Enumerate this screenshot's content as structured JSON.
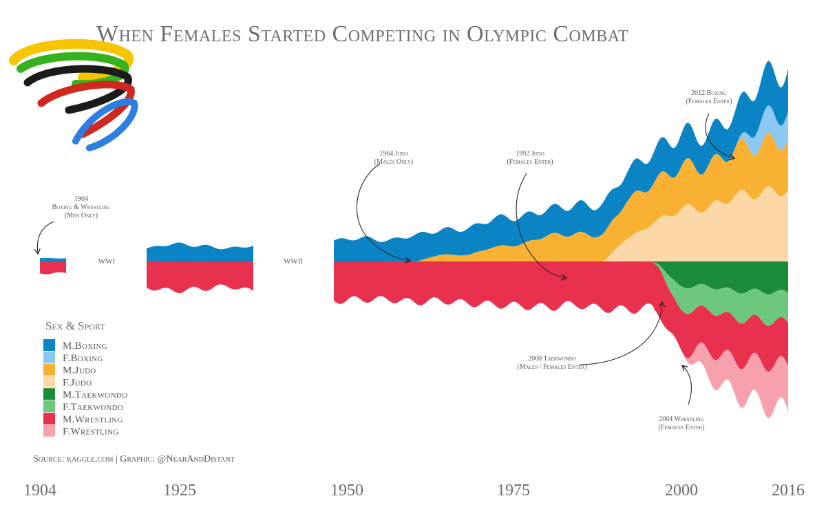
{
  "title": "When Females Started Competing in Olympic Combat",
  "source": "Source: kaggle.com | Graphic: @NearAndDistant",
  "logo_icon": "olympic-rings-swirl",
  "legend": {
    "title": "Sex & Sport",
    "items": [
      {
        "label": "M.Boxing",
        "color": "#0b84c6"
      },
      {
        "label": "F.Boxing",
        "color": "#8cc8f4"
      },
      {
        "label": "M.Judo",
        "color": "#f8b133"
      },
      {
        "label": "F.Judo",
        "color": "#fcd7a7"
      },
      {
        "label": "M.Taekwondo",
        "color": "#1a8c3a"
      },
      {
        "label": "F.Taekwondo",
        "color": "#6ec87c"
      },
      {
        "label": "M.Wrestling",
        "color": "#e8304f"
      },
      {
        "label": "F.Wrestling",
        "color": "#f7a1ad"
      }
    ]
  },
  "eras": [
    "WWI",
    "WWII"
  ],
  "annotations": [
    {
      "lines": [
        "1904",
        "Boxing & Wrestling",
        "(Men Only)"
      ]
    },
    {
      "lines": [
        "1964 Judo",
        "(Males Only)"
      ]
    },
    {
      "lines": [
        "1992 Judo",
        "(Females Enter)"
      ]
    },
    {
      "lines": [
        "2012 Boxing",
        "(Females Enter)"
      ]
    },
    {
      "lines": [
        "2000 Taekwondo",
        "(Males / Females Enter)"
      ]
    },
    {
      "lines": [
        "2004 Wrestling",
        "(Females Enter)"
      ]
    }
  ],
  "chart_data": {
    "type": "area",
    "subtype": "streamgraph",
    "x_ticks": [
      "1904",
      "1925",
      "1950",
      "1975",
      "2000",
      "2016"
    ],
    "gaps": [
      "WWI",
      "WWII"
    ],
    "series": [
      {
        "name": "M.Boxing",
        "color": "#0b84c6",
        "points": [
          [
            1904,
            5
          ],
          [
            1908,
            5
          ],
          [
            1920,
            20
          ],
          [
            1924,
            27
          ],
          [
            1928,
            24
          ],
          [
            1932,
            20
          ],
          [
            1936,
            24
          ],
          [
            1948,
            32
          ],
          [
            1952,
            36
          ],
          [
            1956,
            32
          ],
          [
            1960,
            40
          ],
          [
            1964,
            38
          ],
          [
            1968,
            40
          ],
          [
            1972,
            44
          ],
          [
            1976,
            42
          ],
          [
            1980,
            40
          ],
          [
            1984,
            44
          ],
          [
            1988,
            46
          ],
          [
            1992,
            45
          ],
          [
            1996,
            48
          ],
          [
            2000,
            50
          ],
          [
            2004,
            48
          ],
          [
            2008,
            56
          ],
          [
            2012,
            62
          ],
          [
            2016,
            65
          ]
        ]
      },
      {
        "name": "F.Boxing",
        "color": "#8cc8f4",
        "points": [
          [
            2008,
            0
          ],
          [
            2012,
            38
          ],
          [
            2016,
            42
          ]
        ]
      },
      {
        "name": "M.Judo",
        "color": "#f8b133",
        "points": [
          [
            1960,
            0
          ],
          [
            1964,
            10
          ],
          [
            1968,
            10
          ],
          [
            1972,
            22
          ],
          [
            1976,
            26
          ],
          [
            1980,
            40
          ],
          [
            1984,
            42
          ],
          [
            1988,
            40
          ],
          [
            1992,
            58
          ],
          [
            1996,
            62
          ],
          [
            2000,
            65
          ],
          [
            2004,
            64
          ],
          [
            2008,
            72
          ],
          [
            2012,
            74
          ],
          [
            2016,
            78
          ]
        ]
      },
      {
        "name": "F.Judo",
        "color": "#fcd7a7",
        "points": [
          [
            1988,
            0
          ],
          [
            1992,
            35
          ],
          [
            1996,
            60
          ],
          [
            2000,
            80
          ],
          [
            2004,
            82
          ],
          [
            2008,
            100
          ],
          [
            2012,
            105
          ],
          [
            2016,
            110
          ]
        ]
      },
      {
        "name": "M.Taekwondo",
        "color": "#1a8c3a",
        "points": [
          [
            1996,
            2
          ],
          [
            2000,
            38
          ],
          [
            2004,
            38
          ],
          [
            2008,
            45
          ],
          [
            2012,
            46
          ],
          [
            2016,
            48
          ]
        ]
      },
      {
        "name": "F.Taekwondo",
        "color": "#6ec87c",
        "points": [
          [
            1996,
            2
          ],
          [
            2000,
            36
          ],
          [
            2004,
            36
          ],
          [
            2008,
            42
          ],
          [
            2012,
            44
          ],
          [
            2016,
            46
          ]
        ]
      },
      {
        "name": "M.Wrestling",
        "color": "#e8304f",
        "points": [
          [
            1904,
            18
          ],
          [
            1908,
            18
          ],
          [
            1920,
            40
          ],
          [
            1924,
            45
          ],
          [
            1928,
            42
          ],
          [
            1932,
            38
          ],
          [
            1936,
            45
          ],
          [
            1948,
            60
          ],
          [
            1952,
            58
          ],
          [
            1956,
            58
          ],
          [
            1960,
            62
          ],
          [
            1964,
            60
          ],
          [
            1968,
            64
          ],
          [
            1972,
            66
          ],
          [
            1976,
            68
          ],
          [
            1980,
            70
          ],
          [
            1984,
            66
          ],
          [
            1988,
            72
          ],
          [
            1992,
            74
          ],
          [
            1996,
            70
          ],
          [
            2000,
            62
          ],
          [
            2004,
            62
          ],
          [
            2008,
            64
          ],
          [
            2012,
            64
          ],
          [
            2016,
            66
          ]
        ]
      },
      {
        "name": "F.Wrestling",
        "color": "#f7a1ad",
        "points": [
          [
            2000,
            0
          ],
          [
            2004,
            40
          ],
          [
            2008,
            52
          ],
          [
            2012,
            64
          ],
          [
            2016,
            70
          ]
        ]
      }
    ]
  }
}
